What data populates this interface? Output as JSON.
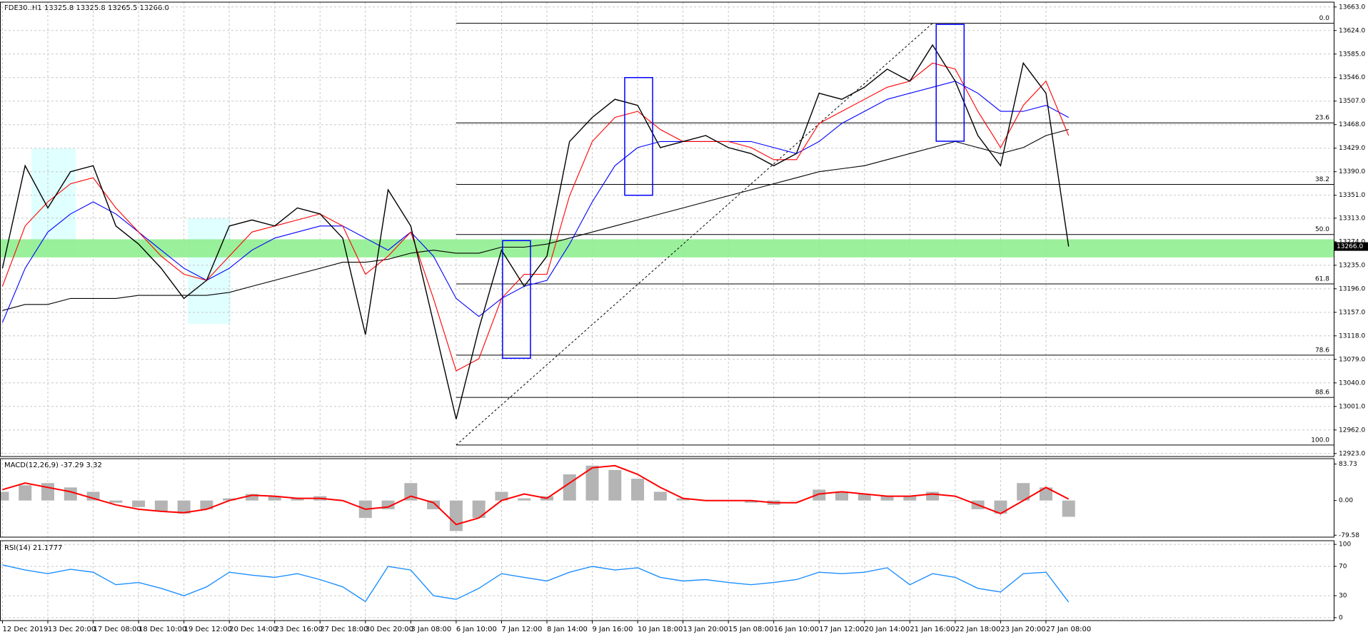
{
  "chart_data": [
    {
      "type": "line",
      "title": "FDE30..H1  13325.8 13325.8 13265.5 13266.0",
      "categories": [
        "12 Dec 2019",
        null,
        "13 Dec 20:00",
        null,
        "17 Dec 08:00",
        null,
        "18 Dec 10:00",
        null,
        "19 Dec 12:00",
        null,
        "20 Dec 14:00",
        null,
        "23 Dec 16:00",
        null,
        "27 Dec 18:00",
        null,
        "30 Dec 20:00",
        null,
        "3 Jan 08:00",
        null,
        "6 Jan 10:00",
        null,
        "7 Jan 12:00",
        null,
        "8 Jan 14:00",
        null,
        "9 Jan 16:00",
        null,
        "10 Jan 18:00",
        null,
        "13 Jan 20:00",
        null,
        "15 Jan 08:00",
        null,
        "16 Jan 10:00",
        null,
        "17 Jan 12:00",
        null,
        "20 Jan 14:00",
        null,
        "21 Jan 16:00",
        null,
        "22 Jan 18:00",
        null,
        "23 Jan 20:00",
        null,
        "27 Jan 08:00",
        null
      ],
      "series": [
        {
          "color": "#000000",
          "values": [
            13230,
            13400,
            13330,
            13390,
            13400,
            13300,
            13270,
            13230,
            13180,
            13210,
            13300,
            13310,
            13300,
            13330,
            13320,
            13280,
            13120,
            13360,
            13300,
            13140,
            12980,
            13130,
            13260,
            13200,
            13250,
            13440,
            13480,
            13510,
            13500,
            13430,
            13440,
            13450,
            13430,
            13420,
            13400,
            13420,
            13520,
            13510,
            13530,
            13560,
            13540,
            13600,
            13540,
            13450,
            13400,
            13570,
            13520,
            13266
          ]
        },
        {
          "color": "#ff0000",
          "values": [
            13200,
            13300,
            13340,
            13370,
            13380,
            13330,
            13290,
            13250,
            13220,
            13210,
            13250,
            13290,
            13300,
            13310,
            13320,
            13300,
            13220,
            13250,
            13290,
            13180,
            13060,
            13080,
            13180,
            13220,
            13220,
            13350,
            13440,
            13480,
            13490,
            13460,
            13440,
            13440,
            13440,
            13430,
            13410,
            13410,
            13470,
            13490,
            13510,
            13530,
            13540,
            13570,
            13560,
            13490,
            13430,
            13500,
            13540,
            13450
          ]
        },
        {
          "color": "#0000ff",
          "values": [
            13140,
            13230,
            13290,
            13320,
            13340,
            13320,
            13290,
            13260,
            13230,
            13210,
            13230,
            13260,
            13280,
            13290,
            13300,
            13300,
            13280,
            13260,
            13290,
            13250,
            13180,
            13150,
            13180,
            13200,
            13210,
            13270,
            13340,
            13400,
            13430,
            13440,
            13440,
            13440,
            13440,
            13440,
            13430,
            13420,
            13440,
            13470,
            13490,
            13510,
            13520,
            13530,
            13540,
            13520,
            13490,
            13490,
            13500,
            13480
          ]
        },
        {
          "color": "#000000",
          "values": [
            13160,
            13170,
            13170,
            13180,
            13180,
            13180,
            13185,
            13185,
            13185,
            13185,
            13190,
            13200,
            13210,
            13220,
            13230,
            13240,
            13240,
            13245,
            13255,
            13260,
            13255,
            13255,
            13265,
            13265,
            13270,
            13280,
            13290,
            13300,
            13310,
            13320,
            13330,
            13340,
            13350,
            13360,
            13370,
            13380,
            13390,
            13395,
            13400,
            13410,
            13420,
            13430,
            13440,
            13430,
            13420,
            13430,
            13450,
            13460
          ]
        }
      ],
      "ylim": [
        12918,
        13671
      ],
      "yticks": [
        {
          "value": 13663,
          "label": "13663.0"
        },
        {
          "value": 13624,
          "label": "13624.0"
        },
        {
          "value": 13585,
          "label": "13585.0"
        },
        {
          "value": 13546,
          "label": "13546.0"
        },
        {
          "value": 13507,
          "label": "13507.0"
        },
        {
          "value": 13468,
          "label": "13468.0"
        },
        {
          "value": 13429,
          "label": "13429.0"
        },
        {
          "value": 13390,
          "label": "13390.0"
        },
        {
          "value": 13351,
          "label": "13351.0"
        },
        {
          "value": 13313,
          "label": "13313.0"
        },
        {
          "value": 13274,
          "label": "13274.0"
        },
        {
          "value": 13235,
          "label": "13235.0"
        },
        {
          "value": 13196,
          "label": "13196.0"
        },
        {
          "value": 13157,
          "label": "13157.0"
        },
        {
          "value": 13118,
          "label": "13118.0"
        },
        {
          "value": 13079,
          "label": "13079.0"
        },
        {
          "value": 13040,
          "label": "13040.0"
        },
        {
          "value": 13001,
          "label": "13001.0"
        },
        {
          "value": 12962,
          "label": "12962.0"
        },
        {
          "value": 12923,
          "label": "12923.0"
        }
      ],
      "fib_levels": [
        {
          "level": "0.0",
          "price": 13636
        },
        {
          "level": "23.6",
          "price": 13471
        },
        {
          "level": "38.2",
          "price": 13369
        },
        {
          "level": "50.0",
          "price": 13286
        },
        {
          "level": "61.8",
          "price": 13204
        },
        {
          "level": "78.6",
          "price": 13086
        },
        {
          "level": "88.6",
          "price": 13016
        },
        {
          "level": "100.0",
          "price": 12937
        }
      ],
      "support_zone": [
        13248,
        13278
      ],
      "support_color": "#90ee90",
      "current_price": {
        "value": 13266,
        "label": "13266.0"
      },
      "grid": true
    },
    {
      "type": "bar",
      "title": "MACD(12,26,9) -37.29 3.32",
      "values": [
        20,
        35,
        40,
        30,
        20,
        -5,
        -15,
        -25,
        -30,
        -20,
        5,
        15,
        10,
        5,
        10,
        0,
        -40,
        -20,
        40,
        -20,
        -70,
        -40,
        20,
        5,
        10,
        60,
        80,
        70,
        50,
        20,
        5,
        0,
        0,
        -5,
        -10,
        0,
        25,
        20,
        15,
        10,
        10,
        20,
        0,
        -20,
        -30,
        40,
        30,
        -37.29
      ],
      "color": "#b4b4b4",
      "line_values": [
        25,
        40,
        30,
        20,
        5,
        -10,
        -20,
        -25,
        -28,
        -20,
        0,
        12,
        10,
        5,
        5,
        0,
        -20,
        -15,
        10,
        -5,
        -55,
        -40,
        0,
        15,
        5,
        40,
        75,
        80,
        60,
        30,
        5,
        0,
        0,
        0,
        -5,
        -5,
        15,
        20,
        15,
        10,
        10,
        15,
        10,
        -10,
        -30,
        0,
        30,
        3.32
      ],
      "line_color": "#ff0000",
      "ylim": [
        -84,
        96
      ],
      "yticks": [
        {
          "value": 83.73,
          "label": "83.73"
        },
        {
          "value": 0,
          "label": "0.00"
        },
        {
          "value": -79.58,
          "label": "-79.58"
        }
      ]
    },
    {
      "type": "line",
      "title": "RSI(14) 21.1777",
      "values": [
        72,
        65,
        60,
        66,
        62,
        45,
        48,
        40,
        30,
        42,
        62,
        58,
        55,
        60,
        52,
        42,
        22,
        70,
        65,
        30,
        25,
        40,
        60,
        55,
        50,
        62,
        70,
        65,
        68,
        55,
        50,
        52,
        48,
        45,
        48,
        52,
        62,
        60,
        62,
        68,
        45,
        60,
        55,
        40,
        35,
        60,
        62,
        21.1777
      ],
      "color": "#1e90ff",
      "ylim": [
        -4,
        105
      ],
      "yticks": [
        100,
        70,
        30,
        0
      ],
      "levels_grid": true
    }
  ]
}
